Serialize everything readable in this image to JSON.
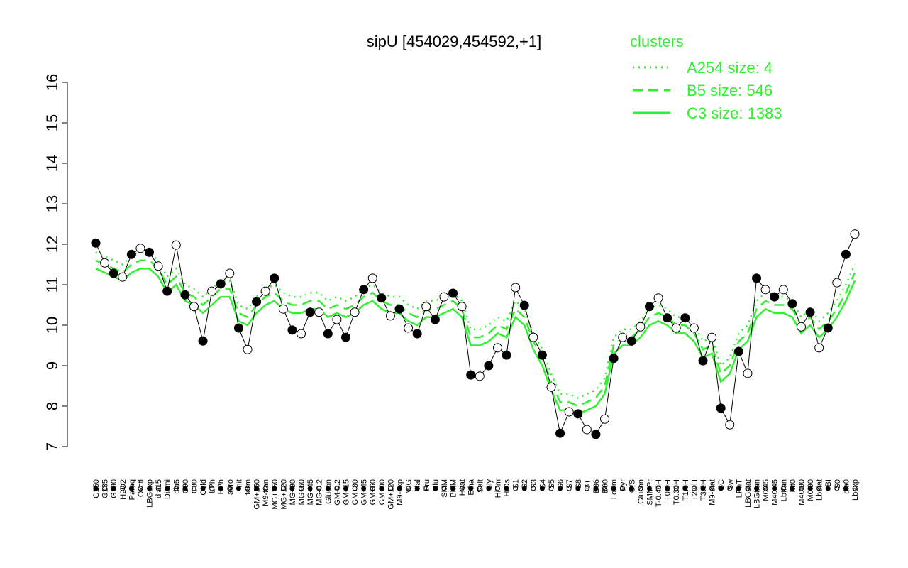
{
  "chart_data": {
    "type": "line",
    "title": "sipU [454029,454592,+1]",
    "legend_title": "clusters",
    "legend_position": "top-right",
    "ylim": [
      7,
      16
    ],
    "yticks": [
      7,
      8,
      9,
      10,
      11,
      12,
      13,
      14,
      15,
      16
    ],
    "categories": [
      "G150",
      "G135",
      "G180",
      "H2O2",
      "Paraq",
      "Oxctl",
      "LBGexp",
      "dia15",
      "Diami",
      "dia5",
      "C90",
      "C30",
      "Cold",
      "LPh",
      "HPh",
      "aero",
      "nit",
      "ferm",
      "GM+150",
      "M9-tran",
      "MG+150",
      "MG+120",
      "MG+90",
      "MG+60",
      "MG+45",
      "MG-0.2",
      "Glucon",
      "GM-0.2",
      "GM+15",
      "GM+30",
      "GM+45",
      "GM+60",
      "GM+90",
      "GM+120",
      "M9-exp",
      "M/G",
      "Mal",
      "Fru",
      "Glu",
      "SMM",
      "BMM",
      "Heat",
      "Etha",
      "Salt",
      "Gly",
      "HiTm",
      "HiOs",
      "S1",
      "S2",
      "S3",
      "S4",
      "S5",
      "S6",
      "S7",
      "S8",
      "BT",
      "B36",
      "B60",
      "LoTm",
      "Pyr",
      "G/S",
      "Glucon",
      "SMMPr",
      "T-0.40H",
      "T0.0H",
      "T0.30H",
      "T1.0H",
      "T2.0H",
      "T3.0H",
      "M9-stat",
      "BC",
      "Sw",
      "LPhT",
      "LBGstat",
      "LBGtran",
      "M0t45",
      "M40t45",
      "Lbtran",
      "Mt0",
      "M40t90",
      "M0t90",
      "Lbstat",
      "BI",
      "S0",
      "dia0",
      "Lbexp"
    ],
    "values": [
      12.03,
      11.54,
      11.28,
      11.19,
      11.75,
      11.9,
      11.8,
      11.46,
      10.84,
      11.98,
      10.75,
      10.46,
      9.61,
      10.84,
      11.02,
      11.28,
      9.93,
      9.4,
      10.58,
      10.84,
      11.16,
      10.4,
      9.88,
      9.79,
      10.32,
      10.32,
      9.79,
      10.14,
      9.7,
      10.32,
      10.88,
      11.16,
      10.67,
      10.23,
      10.4,
      9.93,
      9.79,
      10.46,
      10.14,
      10.7,
      10.79,
      10.46,
      8.77,
      8.74,
      9.0,
      9.44,
      9.26,
      10.93,
      10.49,
      9.7,
      9.26,
      8.47,
      7.33,
      7.86,
      7.81,
      7.42,
      7.3,
      7.68,
      9.18,
      9.7,
      9.61,
      9.96,
      10.46,
      10.67,
      10.18,
      9.93,
      10.18,
      9.93,
      9.12,
      9.7,
      7.95,
      7.54,
      9.35,
      8.81,
      11.16,
      10.88,
      10.7,
      10.88,
      10.53,
      9.96,
      10.32,
      9.44,
      9.93,
      11.05,
      11.75,
      12.25
    ],
    "color": "#000000",
    "series": [
      {
        "name": "A254 size: 4",
        "color": "#33ee33",
        "dash": "dotted",
        "values": [
          11.8,
          11.7,
          11.6,
          11.5,
          11.7,
          11.8,
          11.8,
          11.6,
          11.2,
          11.4,
          11.0,
          10.9,
          10.7,
          10.9,
          11.1,
          11.1,
          10.5,
          10.4,
          10.7,
          10.9,
          11.0,
          10.8,
          10.7,
          10.7,
          10.8,
          10.8,
          10.6,
          10.7,
          10.6,
          10.7,
          10.9,
          11.0,
          10.8,
          10.7,
          10.7,
          10.5,
          10.4,
          10.6,
          10.6,
          10.7,
          10.8,
          10.6,
          9.9,
          9.9,
          10.0,
          10.2,
          10.1,
          10.6,
          10.4,
          9.8,
          9.4,
          8.8,
          8.3,
          8.3,
          8.2,
          8.3,
          8.4,
          8.7,
          9.7,
          9.9,
          9.9,
          10.1,
          10.4,
          10.5,
          10.4,
          10.2,
          10.2,
          10.0,
          9.6,
          9.7,
          9.0,
          9.2,
          9.8,
          10.0,
          10.6,
          10.8,
          10.7,
          10.7,
          10.6,
          10.2,
          10.4,
          10.1,
          10.3,
          10.6,
          11.0,
          11.5
        ]
      },
      {
        "name": "B5 size: 546",
        "color": "#33ee33",
        "dash": "dashed",
        "values": [
          11.6,
          11.5,
          11.4,
          11.3,
          11.5,
          11.6,
          11.6,
          11.4,
          11.0,
          11.2,
          10.8,
          10.7,
          10.5,
          10.7,
          10.9,
          10.9,
          10.3,
          10.2,
          10.5,
          10.7,
          10.8,
          10.6,
          10.5,
          10.5,
          10.6,
          10.6,
          10.4,
          10.5,
          10.4,
          10.5,
          10.7,
          10.8,
          10.6,
          10.5,
          10.5,
          10.3,
          10.2,
          10.4,
          10.4,
          10.5,
          10.6,
          10.4,
          9.7,
          9.7,
          9.8,
          10.0,
          9.9,
          10.4,
          10.2,
          9.6,
          9.2,
          8.6,
          8.1,
          8.1,
          8.0,
          8.1,
          8.2,
          8.5,
          9.5,
          9.7,
          9.7,
          9.9,
          10.2,
          10.3,
          10.2,
          10.0,
          10.0,
          9.8,
          9.4,
          9.5,
          8.8,
          9.0,
          9.6,
          9.8,
          10.4,
          10.6,
          10.5,
          10.5,
          10.4,
          10.0,
          10.2,
          9.9,
          10.1,
          10.4,
          10.8,
          11.3
        ]
      },
      {
        "name": "C3 size: 1383",
        "color": "#33ee33",
        "dash": "solid",
        "values": [
          11.4,
          11.3,
          11.2,
          11.1,
          11.3,
          11.4,
          11.4,
          11.2,
          10.8,
          11.0,
          10.6,
          10.5,
          10.3,
          10.5,
          10.7,
          10.7,
          10.1,
          10.0,
          10.3,
          10.5,
          10.6,
          10.4,
          10.3,
          10.3,
          10.4,
          10.4,
          10.2,
          10.3,
          10.2,
          10.3,
          10.5,
          10.6,
          10.4,
          10.3,
          10.3,
          10.1,
          10.0,
          10.2,
          10.2,
          10.3,
          10.4,
          10.2,
          9.5,
          9.5,
          9.6,
          9.8,
          9.7,
          10.2,
          10.0,
          9.4,
          9.0,
          8.4,
          7.9,
          7.9,
          7.8,
          7.9,
          8.0,
          8.3,
          9.3,
          9.5,
          9.5,
          9.7,
          10.0,
          10.1,
          10.0,
          9.8,
          9.8,
          9.6,
          9.2,
          9.3,
          8.6,
          8.8,
          9.4,
          9.6,
          10.2,
          10.4,
          10.3,
          10.3,
          10.2,
          9.8,
          10.0,
          9.7,
          9.9,
          10.2,
          10.6,
          11.1
        ]
      }
    ]
  }
}
